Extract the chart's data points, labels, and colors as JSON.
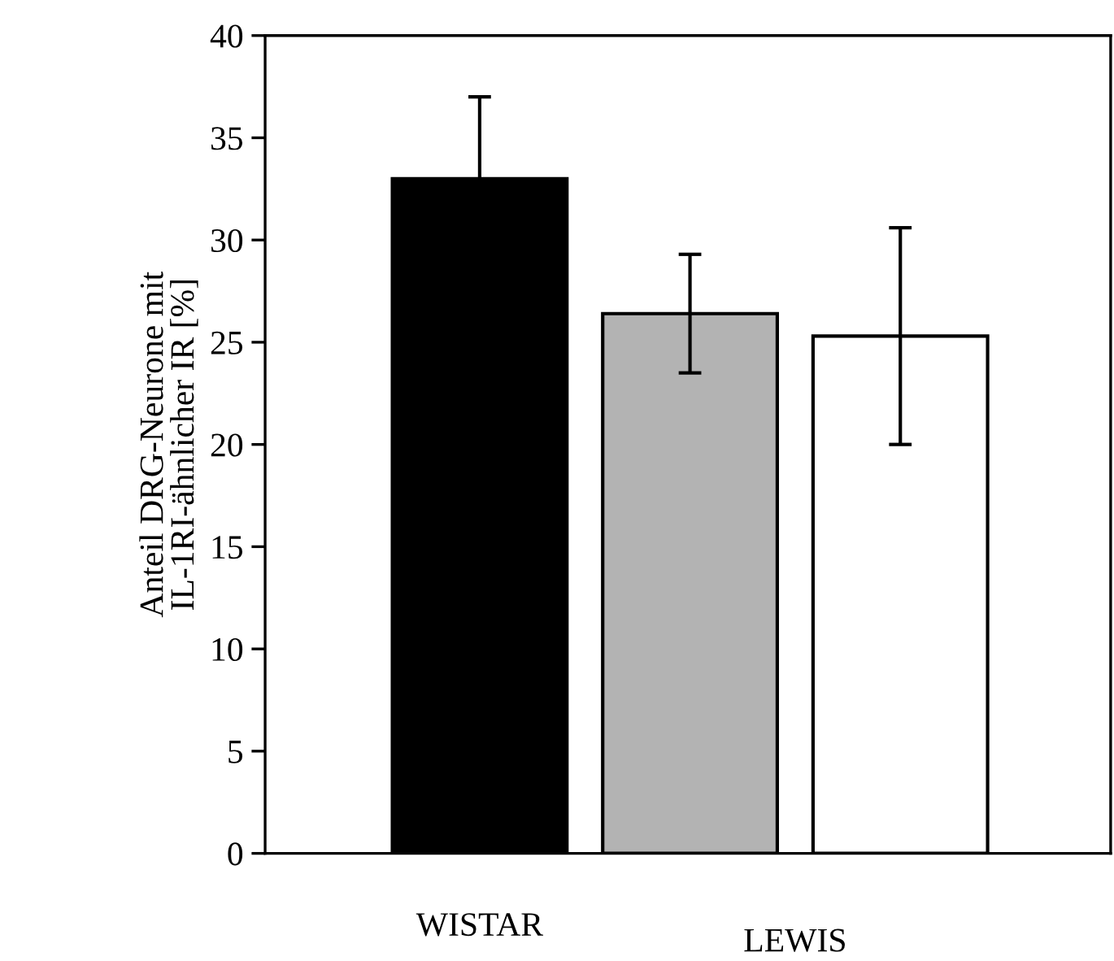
{
  "chart_data": {
    "type": "bar",
    "ylabel": "Anteil DRG-Neurone mit\nIL-1RI-ähnlicher IR [%]",
    "categories": [
      "WISTAR",
      null,
      null
    ],
    "values": [
      33,
      26.4,
      25.3
    ],
    "errors": [
      4,
      2.9,
      5.3
    ],
    "colors": [
      "#000000",
      "#b3b3b3",
      "#ffffff"
    ],
    "ylim": [
      0,
      40
    ],
    "yticks": [
      0,
      5,
      10,
      15,
      20,
      25,
      30,
      35,
      40
    ],
    "annotations": [
      "LEWIS"
    ],
    "grid": false,
    "legend": false
  }
}
